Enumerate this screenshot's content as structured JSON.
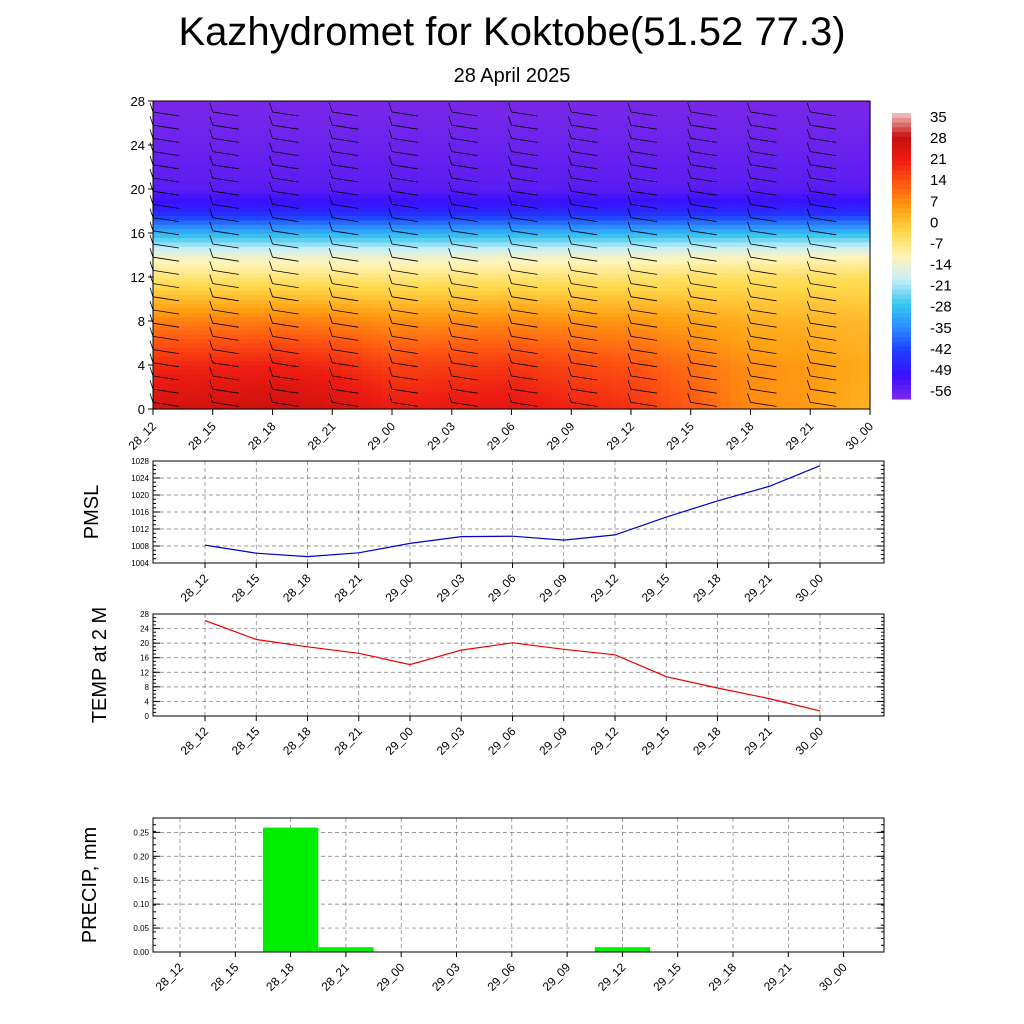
{
  "header": {
    "title": "Kazhydromet for Koktobe(51.52 77.3)",
    "subtitle": "28 April 2025"
  },
  "chart_data": [
    {
      "type": "heatmap",
      "name": "cross-section",
      "title": "",
      "xlabel": "",
      "ylabel": "",
      "x_ticks": [
        "28_12",
        "28_15",
        "28_18",
        "28_21",
        "29_00",
        "29_03",
        "29_06",
        "29_09",
        "29_12",
        "29_15",
        "29_18",
        "29_21",
        "30_00"
      ],
      "y_ticks": [
        0,
        4,
        8,
        12,
        16,
        20,
        24,
        28
      ],
      "ylim": [
        0,
        28
      ],
      "colorbar_labels": [
        "35",
        "28",
        "21",
        "14",
        "7",
        "0",
        "-7",
        "-14",
        "-21",
        "-28",
        "-35",
        "-42",
        "-49",
        "-56"
      ],
      "colorbar_range": [
        -60,
        38
      ],
      "color_stops": [
        "#7a28e8",
        "#3a10ff",
        "#1f3cff",
        "#2a8cff",
        "#39c8f0",
        "#c8eef8",
        "#fff4b8",
        "#ffd84a",
        "#ffa012",
        "#ff5a12",
        "#ee1c12",
        "#c80f0f",
        "#f0c8c8"
      ],
      "temperature_profile": {
        "levels": [
          0,
          4,
          8,
          12,
          14,
          16,
          18,
          20,
          24,
          28
        ],
        "temperature_c": [
          30,
          22,
          10,
          -6,
          -14,
          -30,
          -48,
          -56,
          -58,
          -60
        ]
      },
      "surface_temperature_c": [
        27,
        28,
        29,
        27,
        22,
        23,
        24,
        21,
        19,
        14,
        8,
        6,
        3
      ],
      "freezing_level": [
        12.8,
        12.8,
        12.9,
        12.9,
        13.0,
        12.9,
        12.8,
        12.7,
        12.6,
        12.3,
        12.1,
        12.0,
        11.9
      ],
      "wind_barbs": "wind barbs at each time column and level"
    },
    {
      "type": "line",
      "name": "pmsl",
      "ylabel": "PMSL",
      "x": [
        "28_12",
        "28_15",
        "28_18",
        "28_21",
        "29_00",
        "29_03",
        "29_06",
        "29_09",
        "29_12",
        "29_15",
        "29_18",
        "29_21",
        "30_00"
      ],
      "ylim": [
        1004,
        1028
      ],
      "y_ticks": [
        1004,
        1008,
        1012,
        1016,
        1020,
        1024,
        1028
      ],
      "grid": true,
      "series": [
        {
          "color": "#0000cc",
          "values": [
            1008.2,
            1006.3,
            1005.5,
            1006.4,
            1008.6,
            1010.2,
            1010.3,
            1009.4,
            1010.6,
            1014.8,
            1018.6,
            1022.0,
            1026.9
          ]
        }
      ]
    },
    {
      "type": "line",
      "name": "temp2m",
      "ylabel": "TEMP at 2 M",
      "x": [
        "28_12",
        "28_15",
        "28_18",
        "28_21",
        "29_00",
        "29_03",
        "29_06",
        "29_09",
        "29_12",
        "29_15",
        "29_18",
        "29_21",
        "30_00"
      ],
      "ylim": [
        0,
        28
      ],
      "y_ticks": [
        0,
        4,
        8,
        12,
        16,
        20,
        24,
        28
      ],
      "grid": true,
      "series": [
        {
          "color": "#ee0000",
          "values": [
            26.2,
            21.0,
            19.0,
            17.2,
            14.1,
            18.1,
            20.1,
            18.3,
            16.8,
            10.8,
            7.7,
            4.8,
            1.4
          ]
        }
      ]
    },
    {
      "type": "bar",
      "name": "precip",
      "ylabel": "PRECIP, mm",
      "categories": [
        "28_12",
        "28_15",
        "28_18",
        "28_21",
        "29_00",
        "29_03",
        "29_06",
        "29_09",
        "29_12",
        "29_15",
        "29_18",
        "29_21",
        "30_00"
      ],
      "ylim": [
        0,
        0.28
      ],
      "y_ticks": [
        "0.00",
        "0.05",
        "0.10",
        "0.15",
        "0.20",
        "0.25"
      ],
      "grid": true,
      "bar_color": "#00ee00",
      "values": [
        0,
        0,
        0.26,
        0.01,
        0,
        0,
        0,
        0,
        0.01,
        0,
        0,
        0,
        0
      ]
    }
  ]
}
